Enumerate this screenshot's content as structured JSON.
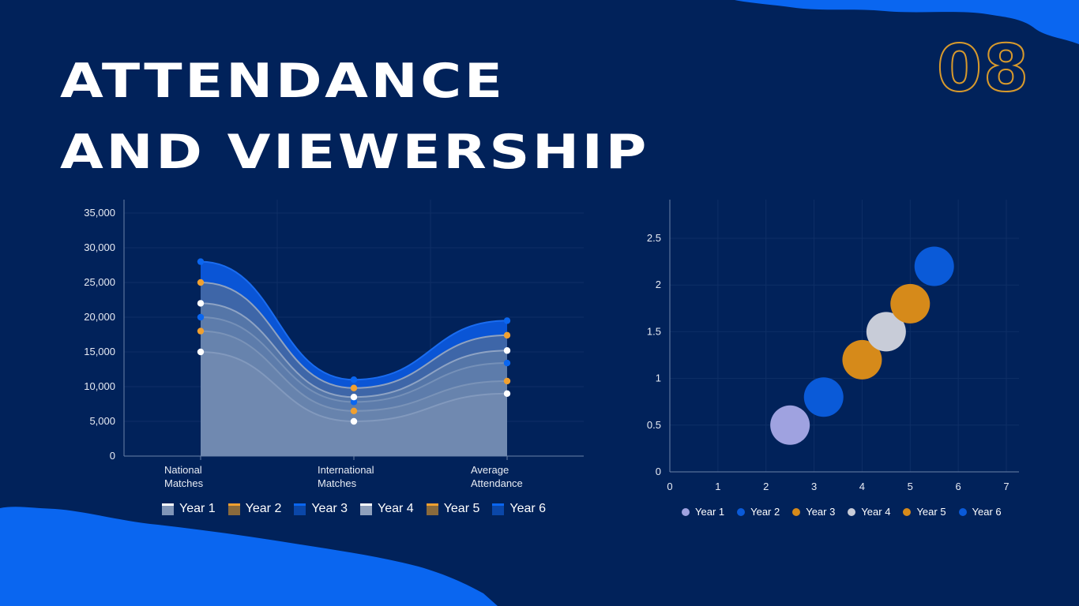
{
  "title": {
    "line1": "ATTENDANCE",
    "line2": "AND VIEWERSHIP"
  },
  "page_number": "08",
  "colors": {
    "background": "#01225a",
    "accent_blue": "#0a66f0",
    "accent_orange": "#d89a2c",
    "white": "#ffffff"
  },
  "chart_data": [
    {
      "type": "area",
      "title": "",
      "categories": [
        "National\nMatches",
        "International\nMatches",
        "Average\nAttendance"
      ],
      "ylim": [
        0,
        35000
      ],
      "yticks": [
        0,
        5000,
        10000,
        15000,
        20000,
        25000,
        30000,
        35000
      ],
      "ytick_labels": [
        "0",
        "5,000",
        "10,000",
        "15,000",
        "20,000",
        "25,000",
        "30,000",
        "35,000"
      ],
      "grid": true,
      "series": [
        {
          "name": "Year 1",
          "values": [
            15000,
            5000,
            9000
          ],
          "color": "#ffffff"
        },
        {
          "name": "Year 2",
          "values": [
            18000,
            6500,
            10800
          ],
          "color": "#f0a030"
        },
        {
          "name": "Year 3",
          "values": [
            20000,
            7800,
            13400
          ],
          "color": "#0a66f0"
        },
        {
          "name": "Year 4",
          "values": [
            22000,
            8500,
            15200
          ],
          "color": "#ffffff"
        },
        {
          "name": "Year 5",
          "values": [
            25000,
            9800,
            17400
          ],
          "color": "#f0a030"
        },
        {
          "name": "Year 6",
          "values": [
            28000,
            11000,
            19500
          ],
          "color": "#0a66f0"
        }
      ]
    },
    {
      "type": "scatter",
      "title": "",
      "xlim": [
        0,
        7
      ],
      "ylim": [
        0,
        2.8
      ],
      "xticks": [
        0,
        1,
        2,
        3,
        4,
        5,
        6,
        7
      ],
      "yticks": [
        0,
        0.5,
        1,
        1.5,
        2,
        2.5
      ],
      "grid": true,
      "series": [
        {
          "name": "Year 1",
          "x": 2.5,
          "y": 0.5,
          "color": "#9fa2e0"
        },
        {
          "name": "Year 2",
          "x": 3.2,
          "y": 0.8,
          "color": "#0a5ad8"
        },
        {
          "name": "Year 3",
          "x": 4.0,
          "y": 1.2,
          "color": "#d68a1a"
        },
        {
          "name": "Year 4",
          "x": 4.5,
          "y": 1.5,
          "color": "#c8ccd8"
        },
        {
          "name": "Year 5",
          "x": 5.0,
          "y": 1.8,
          "color": "#d68a1a"
        },
        {
          "name": "Year 6",
          "x": 5.5,
          "y": 2.2,
          "color": "#0a5ad8"
        }
      ]
    }
  ]
}
